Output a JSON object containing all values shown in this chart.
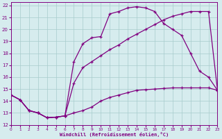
{
  "xlabel": "Windchill (Refroidissement éolien,°C)",
  "xlim": [
    0,
    23
  ],
  "ylim": [
    12,
    22.3
  ],
  "xticks": [
    0,
    1,
    2,
    3,
    4,
    5,
    6,
    7,
    8,
    9,
    10,
    11,
    12,
    13,
    14,
    15,
    16,
    17,
    18,
    19,
    20,
    21,
    22,
    23
  ],
  "yticks": [
    12,
    13,
    14,
    15,
    16,
    17,
    18,
    19,
    20,
    21,
    22
  ],
  "background_color": "#d6ecee",
  "grid_color": "#a8cccc",
  "line_color": "#800080",
  "line1_x": [
    0,
    1,
    2,
    3,
    4,
    5,
    6,
    7,
    8,
    9,
    10,
    11,
    12,
    13,
    14,
    15,
    16,
    17,
    18,
    19,
    20,
    21,
    22,
    23
  ],
  "line1_y": [
    14.5,
    14.1,
    13.2,
    13.0,
    12.6,
    12.65,
    12.75,
    13.0,
    13.2,
    13.5,
    14.0,
    14.3,
    14.5,
    14.7,
    14.9,
    14.95,
    15.0,
    15.05,
    15.1,
    15.1,
    15.1,
    15.1,
    15.1,
    14.9
  ],
  "line2_x": [
    0,
    1,
    2,
    3,
    4,
    5,
    6,
    7,
    8,
    9,
    10,
    11,
    12,
    13,
    14,
    15,
    16,
    17,
    18,
    19,
    20,
    21,
    22,
    23
  ],
  "line2_y": [
    14.5,
    14.1,
    13.2,
    13.0,
    12.6,
    12.65,
    12.75,
    15.5,
    16.8,
    17.3,
    17.8,
    18.3,
    18.7,
    19.2,
    19.6,
    20.0,
    20.4,
    20.8,
    21.1,
    21.3,
    21.5,
    21.5,
    21.5,
    14.9
  ],
  "line3_x": [
    0,
    1,
    2,
    3,
    4,
    5,
    6,
    7,
    8,
    9,
    10,
    11,
    12,
    13,
    14,
    15,
    16,
    17,
    18,
    19,
    20,
    21,
    22,
    23
  ],
  "line3_y": [
    14.5,
    14.1,
    13.2,
    13.0,
    12.6,
    12.65,
    12.75,
    17.3,
    18.8,
    19.3,
    19.4,
    21.3,
    21.5,
    21.8,
    21.9,
    21.8,
    21.5,
    20.5,
    20.0,
    19.5,
    18.0,
    16.5,
    16.0,
    14.9
  ]
}
